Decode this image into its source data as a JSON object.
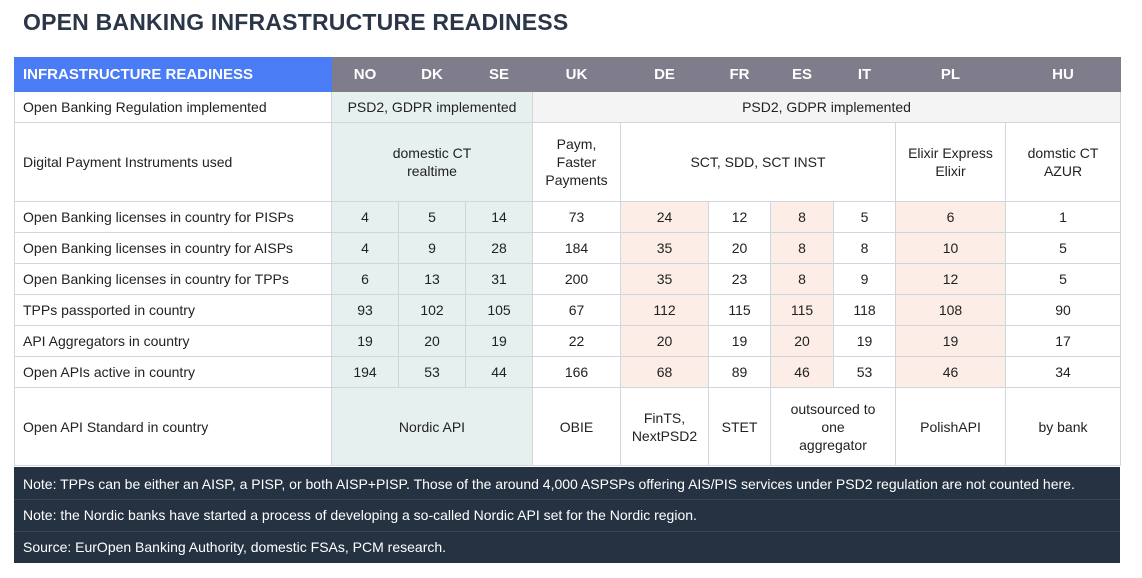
{
  "title": "OPEN BANKING INFRASTRUCTURE READINESS",
  "table": {
    "header_label": "INFRASTRUCTURE READINESS",
    "countries": [
      "NO",
      "DK",
      "SE",
      "UK",
      "DE",
      "FR",
      "ES",
      "IT",
      "PL",
      "HU"
    ],
    "regulation": {
      "label": "Open Banking Regulation implemented",
      "nordic": "PSD2, GDPR implemented",
      "others": "PSD2, GDPR implemented"
    },
    "instruments": {
      "label": "Digital Payment Instruments used",
      "nordic": "domestic CT realtime",
      "uk": "Paym, Faster Payments",
      "euro": "SCT, SDD, SCT INST",
      "pl": "Elixir Express Elixir",
      "hu": "domstic CT AZUR"
    },
    "rows": [
      {
        "label": "Open Banking licenses in country for PISPs",
        "values": [
          "4",
          "5",
          "14",
          "73",
          "24",
          "12",
          "8",
          "5",
          "6",
          "1"
        ]
      },
      {
        "label": "Open Banking licenses in country for AISPs",
        "values": [
          "4",
          "9",
          "28",
          "184",
          "35",
          "20",
          "8",
          "8",
          "10",
          "5"
        ]
      },
      {
        "label": "Open Banking licenses in country for TPPs",
        "values": [
          "6",
          "13",
          "31",
          "200",
          "35",
          "23",
          "8",
          "9",
          "12",
          "5"
        ]
      },
      {
        "label": "TPPs passported in country",
        "values": [
          "93",
          "102",
          "105",
          "67",
          "112",
          "115",
          "115",
          "118",
          "108",
          "90"
        ]
      },
      {
        "label": "API Aggregators in country",
        "values": [
          "19",
          "20",
          "19",
          "22",
          "20",
          "19",
          "20",
          "19",
          "19",
          "17"
        ]
      },
      {
        "label": "Open APIs active in country",
        "values": [
          "194",
          "53",
          "44",
          "166",
          "68",
          "89",
          "46",
          "53",
          "46",
          "34"
        ]
      }
    ],
    "standard": {
      "label": "Open API Standard in country",
      "nordic": "Nordic API",
      "uk": "OBIE",
      "de": "FinTS, NextPSD2",
      "fr": "STET",
      "es_it": "outsourced to one aggregator",
      "pl": "PolishAPI",
      "hu": "by bank"
    }
  },
  "notes": [
    "Note: TPPs can be either an AISP, a PISP, or both AISP+PISP. Those of the around 4,000 ASPSPs offering AIS/PIS services under PSD2 regulation are not counted here.",
    "Note: the Nordic banks have started a process of developing a so-called Nordic API set for the Nordic region.",
    "Source: EurOpen Banking Authority, domestic FSAs, PCM research."
  ],
  "colors": {
    "header_label_bg": "#4a7cf6",
    "header_bg": "#7f7c8c",
    "nordic_bg": "#e6f1ef",
    "highlight_bg": "#fcede6",
    "notes_bg": "#253242",
    "title": "#2b3648"
  }
}
